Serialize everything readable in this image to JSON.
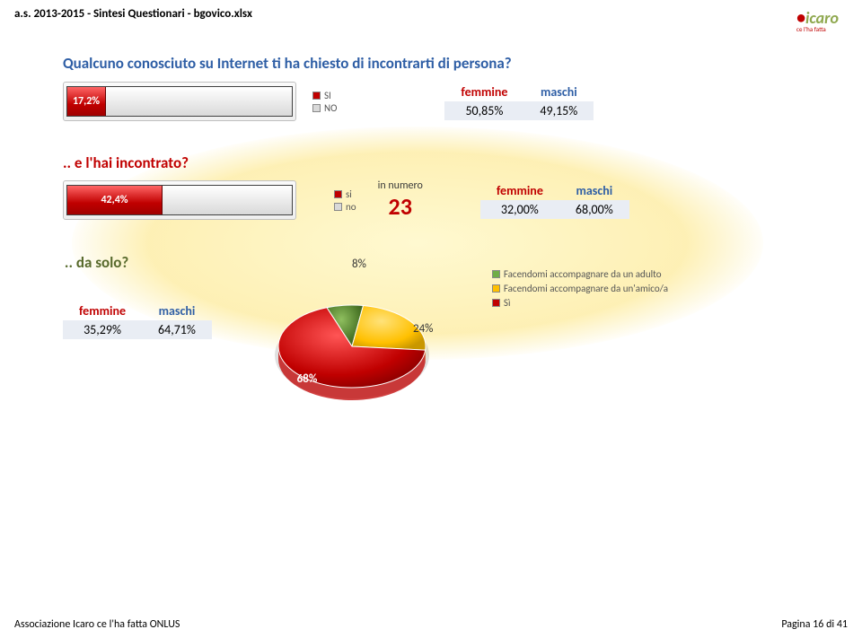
{
  "header": {
    "filename": "a.s. 2013-2015 - Sintesi Questionari - bgovico.xlsx"
  },
  "logo": {
    "brand": "icaro",
    "tagline": "ce l'ha fatta"
  },
  "q1": {
    "title": "Qualcuno conosciuto su Internet ti ha chiesto di incontrarti di persona?",
    "bar": {
      "value_label": "17,2%",
      "value": 17.2,
      "si": "SI",
      "no": "NO"
    },
    "table": {
      "femmine_h": "femmine",
      "maschi_h": "maschi",
      "femmine_v": "50,85%",
      "maschi_v": "49,15%"
    }
  },
  "q2": {
    "title": ".. e l'hai incontrato?",
    "bar": {
      "value_label": "42,4%",
      "value": 42.4,
      "si": "si",
      "no": "no"
    },
    "in_label": "in numero",
    "in_value": "23",
    "table": {
      "femmine_h": "femmine",
      "maschi_h": "maschi",
      "femmine_v": "32,00%",
      "maschi_v": "68,00%"
    }
  },
  "q3": {
    "title": ".. da solo?",
    "table": {
      "femmine_h": "femmine",
      "maschi_h": "maschi",
      "femmine_v": "35,29%",
      "maschi_v": "64,71%"
    },
    "pie": {
      "slices": [
        {
          "label": "8%",
          "value": 8,
          "color": "#4e7a2a"
        },
        {
          "label": "24%",
          "value": 24,
          "color": "#ffc000"
        },
        {
          "label": "68%",
          "value": 68,
          "color": "#c00000"
        }
      ],
      "legend": {
        "a": "Facendomi accompagnare da un adulto",
        "b": "Facendomi accompagnare da un'amico/a",
        "c": "Sì"
      }
    }
  },
  "footer": {
    "left": "Associazione Icaro ce l'ha fatta ONLUS",
    "right": "Pagina 16 di 41"
  },
  "colors": {
    "title_blue": "#2e5ea5",
    "title_red": "#c00000",
    "title_green": "#586a2c",
    "bar_red": "#c00000",
    "pie_green": "#4e7a2a",
    "pie_yellow": "#ffc000",
    "row_bg": "#e9edf4"
  }
}
